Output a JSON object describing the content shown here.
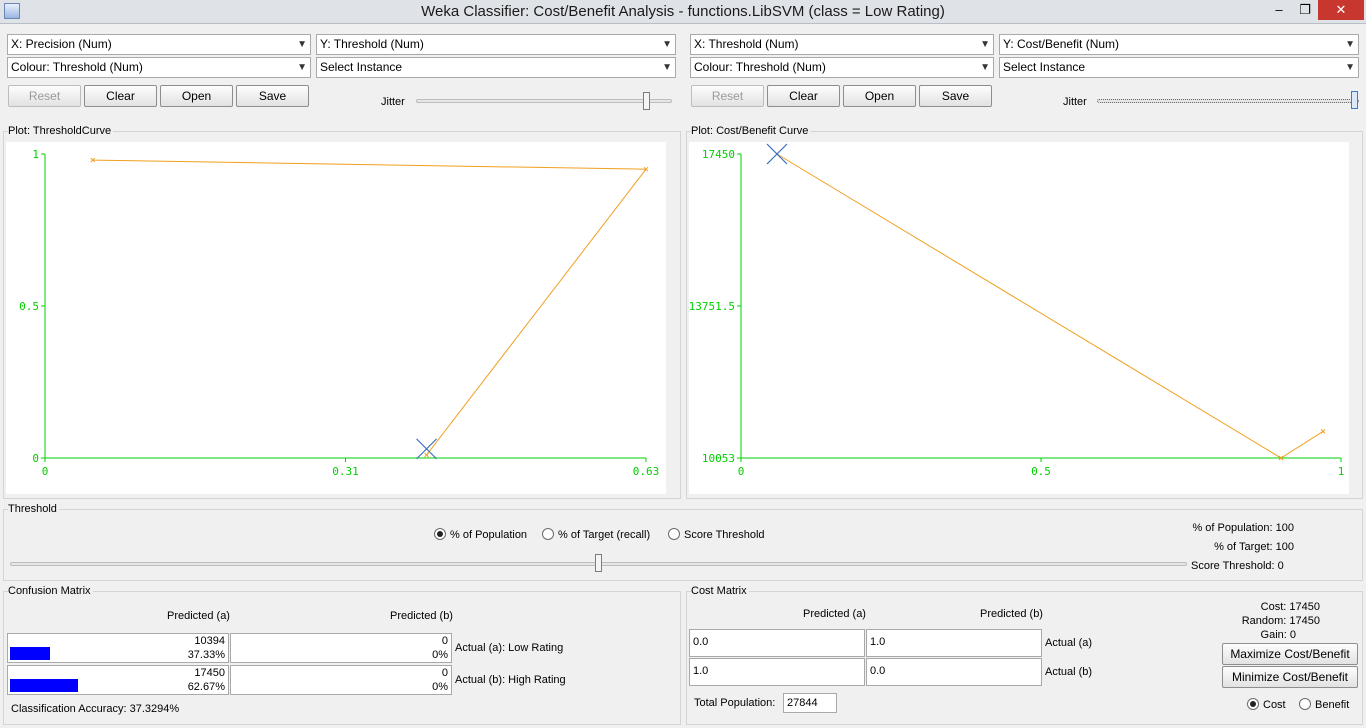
{
  "window": {
    "title": "Weka Classifier: Cost/Benefit Analysis - functions.LibSVM  (class = Low Rating)",
    "min": "–",
    "max": "❐",
    "close": "✕"
  },
  "left": {
    "x_axis": "X: Precision (Num)",
    "y_axis": "Y: Threshold (Num)",
    "colour": "Colour: Threshold (Num)",
    "instance": "Select Instance",
    "reset": "Reset",
    "clear": "Clear",
    "open": "Open",
    "save": "Save",
    "jitter": "Jitter",
    "plot_title": "Plot: ThresholdCurve"
  },
  "right": {
    "x_axis": "X: Threshold (Num)",
    "y_axis": "Y: Cost/Benefit (Num)",
    "colour": "Colour: Threshold (Num)",
    "instance": "Select Instance",
    "reset": "Reset",
    "clear": "Clear",
    "open": "Open",
    "save": "Save",
    "jitter": "Jitter",
    "plot_title": "Plot: Cost/Benefit Curve"
  },
  "chart_data": [
    {
      "type": "line",
      "xlim": [
        0,
        0.63
      ],
      "ylim": [
        0,
        1
      ],
      "x_ticks": [
        "0",
        "0.31",
        "0.63"
      ],
      "y_ticks": [
        "0",
        "0.5",
        "1"
      ],
      "series": [
        {
          "x": [
            0.05,
            0.63,
            0.4
          ],
          "y": [
            0.98,
            0.95,
            0.01
          ]
        }
      ],
      "selected_point": {
        "x": 0.4,
        "y": 0.03
      },
      "axis_color": "#00d000",
      "line_color": "#f0a020",
      "marker_color": "#3a6fc0"
    },
    {
      "type": "line",
      "xlim": [
        0,
        1
      ],
      "ylim": [
        10053,
        17450
      ],
      "x_ticks": [
        "0",
        "0.5",
        "1"
      ],
      "y_ticks": [
        "10053",
        "13751.5",
        "17450"
      ],
      "series": [
        {
          "x": [
            0.06,
            0.9,
            0.97
          ],
          "y": [
            17450,
            10053,
            10700
          ]
        }
      ],
      "selected_point": {
        "x": 0.06,
        "y": 17450
      },
      "axis_color": "#00d000",
      "line_color": "#f0a020",
      "marker_color": "#3a6fc0"
    }
  ],
  "threshold": {
    "title": "Threshold",
    "options": [
      "% of Population",
      "% of Target (recall)",
      "Score Threshold"
    ],
    "selected": 0,
    "pop_line": "% of Population: 100",
    "target_line": "% of Target: 100",
    "score_line": "Score Threshold: 0",
    "slider_value": 0.5
  },
  "confusion": {
    "title": "Confusion Matrix",
    "col_a": "Predicted (a)",
    "col_b": "Predicted (b)",
    "row_a": "Actual (a): Low Rating",
    "row_b": "Actual (b): High Rating",
    "aa_count": "10394",
    "aa_pct": "37.33%",
    "aa_frac": 0.3733,
    "ab_count": "0",
    "ab_pct": "0%",
    "ba_count": "17450",
    "ba_pct": "62.67%",
    "ba_frac": 0.6267,
    "bb_count": "0",
    "bb_pct": "0%",
    "accuracy": "Classification Accuracy:   37.3294%"
  },
  "cost_matrix": {
    "title": "Cost Matrix",
    "col_a": "Predicted (a)",
    "col_b": "Predicted (b)",
    "row_a": "Actual (a)",
    "row_b": "Actual (b)",
    "aa": "0.0",
    "ab": "1.0",
    "ba": "1.0",
    "bb": "0.0",
    "total_label": "Total Population:",
    "total": "27844",
    "cost_line": "Cost: 17450",
    "random_line": "Random: 17450",
    "gain_line": "Gain: 0",
    "maximize": "Maximize Cost/Benefit",
    "minimize": "Minimize Cost/Benefit",
    "opt_cost": "Cost",
    "opt_benefit": "Benefit",
    "selected": "cost"
  }
}
